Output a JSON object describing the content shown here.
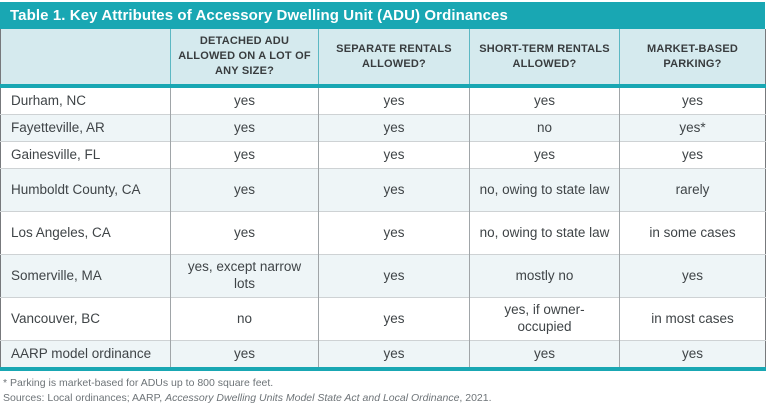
{
  "title": "Table 1. Key Attributes of Accessory Dwelling Unit (ADU) Ordinances",
  "colors": {
    "accent_teal": "#19a7b3",
    "header_bg": "#d5eaee",
    "row_alt_bg": "#eef5f7"
  },
  "table": {
    "columns": [
      "",
      "DETACHED ADU ALLOWED ON A LOT OF ANY SIZE?",
      "SEPARATE RENTALS ALLOWED?",
      "SHORT-TERM RENTALS ALLOWED?",
      "MARKET-BASED PARKING?"
    ],
    "rows": [
      {
        "label": "Durham, NC",
        "cells": [
          "yes",
          "yes",
          "yes",
          "yes"
        ]
      },
      {
        "label": "Fayetteville, AR",
        "cells": [
          "yes",
          "yes",
          "no",
          "yes*"
        ]
      },
      {
        "label": "Gainesville, FL",
        "cells": [
          "yes",
          "yes",
          "yes",
          "yes"
        ]
      },
      {
        "label": "Humboldt County, CA",
        "cells": [
          "yes",
          "yes",
          "no, owing to state law",
          "rarely"
        ]
      },
      {
        "label": "Los Angeles, CA",
        "cells": [
          "yes",
          "yes",
          "no, owing to state law",
          "in some cases"
        ]
      },
      {
        "label": "Somerville, MA",
        "cells": [
          "yes, except narrow lots",
          "yes",
          "mostly no",
          "yes"
        ]
      },
      {
        "label": "Vancouver, BC",
        "cells": [
          "no",
          "yes",
          "yes, if owner-occupied",
          "in most cases"
        ]
      },
      {
        "label": "AARP model ordinance",
        "cells": [
          "yes",
          "yes",
          "yes",
          "yes"
        ]
      }
    ]
  },
  "footnotes": {
    "note1": "* Parking is market-based for ADUs up to 800 square feet.",
    "sources_prefix": "Sources: Local ordinances; AARP, ",
    "sources_italic": "Accessory Dwelling Units Model State Act and Local Ordinance",
    "sources_suffix": ", 2021."
  }
}
